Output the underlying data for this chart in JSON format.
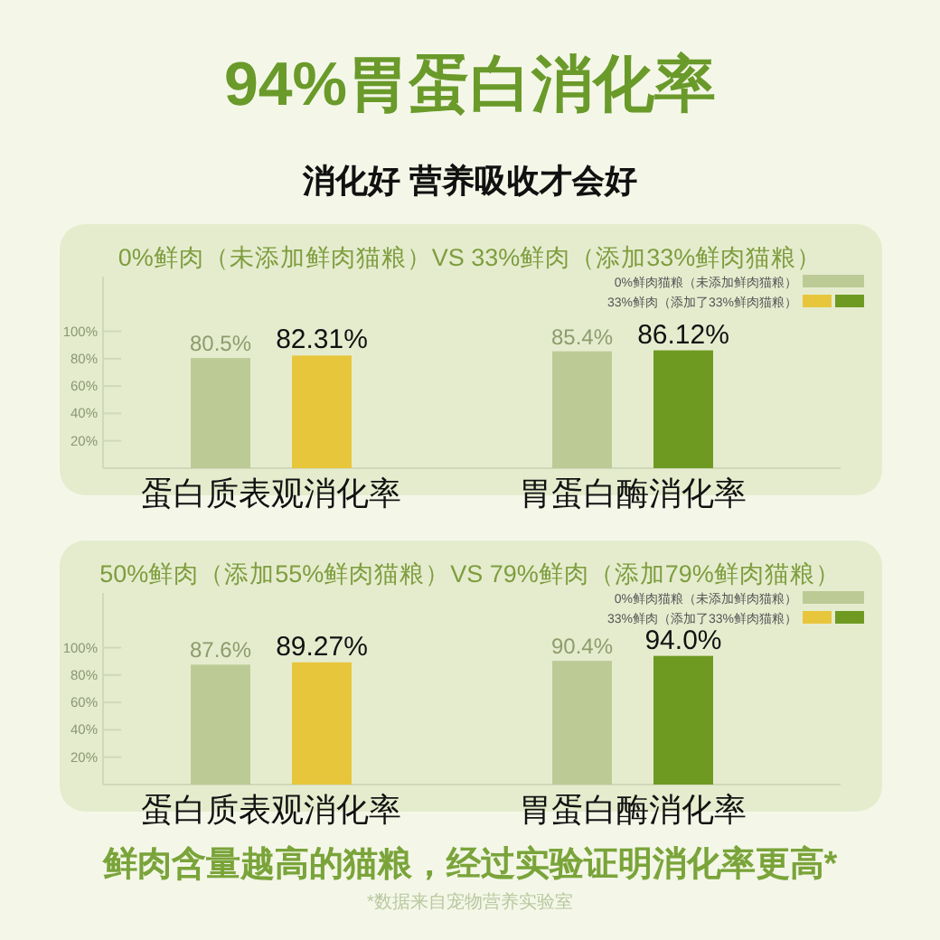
{
  "chart_data": [
    {
      "type": "bar",
      "title": "0%鲜肉（未添加鲜肉猫粮）VS  33%鲜肉（添加33%鲜肉猫粮）",
      "annotations": [
        "94%胃蛋白消化率",
        "消化好 营养吸收才会好"
      ],
      "categories": [
        "蛋白质表观消化率",
        "胃蛋白酶消化率"
      ],
      "ylim": [
        0,
        140
      ],
      "yticks": [
        {
          "value": 20,
          "label": "20%"
        },
        {
          "value": 40,
          "label": "40%"
        },
        {
          "value": 60,
          "label": "60%"
        },
        {
          "value": 80,
          "label": "80%"
        },
        {
          "value": 100,
          "label": "100%"
        }
      ],
      "legend": "top right",
      "series": [
        {
          "name": "0%鲜肉猫粮（未添加鲜肉猫粮）",
          "color": "#bccb96",
          "values": [
            80.5,
            85.4
          ],
          "value_labels": [
            "80.5%",
            "85.4%"
          ]
        },
        {
          "name": "33%鲜肉（添加了33%鲜肉猫粮）",
          "colors": [
            "#e8c63c",
            "#6e9a22"
          ],
          "values": [
            82.31,
            86.12
          ],
          "value_labels": [
            "82.31%",
            "86.12%"
          ]
        }
      ]
    },
    {
      "type": "bar",
      "title": "50%鲜肉（添加55%鲜肉猫粮）VS  79%鲜肉（添加79%鲜肉猫粮）",
      "annotations": [
        "鲜肉含量越高的猫粮，经过实验证明消化率更高*",
        "*数据来自宠物营养实验室"
      ],
      "categories": [
        "蛋白质表观消化率",
        "胃蛋白酶消化率"
      ],
      "ylim": [
        0,
        140
      ],
      "yticks": [
        {
          "value": 20,
          "label": "20%"
        },
        {
          "value": 40,
          "label": "40%"
        },
        {
          "value": 60,
          "label": "60%"
        },
        {
          "value": 80,
          "label": "80%"
        },
        {
          "value": 100,
          "label": "100%"
        }
      ],
      "legend": "top right",
      "series": [
        {
          "name": "0%鲜肉猫粮（未添加鲜肉猫粮）",
          "color": "#bccb96",
          "values": [
            87.6,
            90.4
          ],
          "value_labels": [
            "87.6%",
            "90.4%"
          ]
        },
        {
          "name": "33%鲜肉（添加了33%鲜肉猫粮）",
          "colors": [
            "#e8c63c",
            "#6e9a22"
          ],
          "values": [
            89.27,
            94.0
          ],
          "value_labels": [
            "89.27%",
            "94.0%"
          ]
        }
      ]
    }
  ]
}
